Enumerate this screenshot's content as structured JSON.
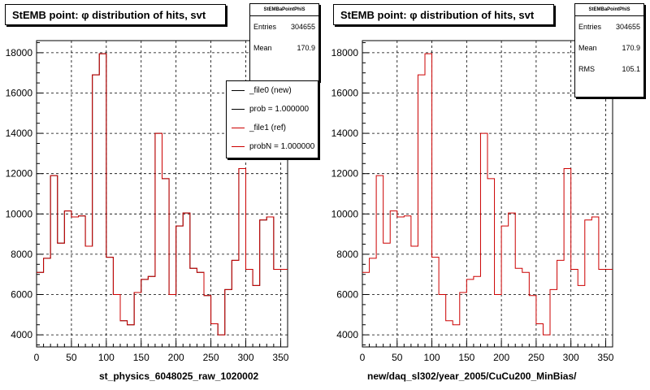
{
  "chart_data": [
    {
      "type": "histogram",
      "title": "StEMB point:  φ distribution of hits, svt",
      "xlabel": "st_physics_6048025_raw_1020002",
      "ylabel": "",
      "xlim": [
        0,
        360
      ],
      "ylim": [
        3400,
        18600
      ],
      "xticks": [
        0,
        50,
        100,
        150,
        200,
        250,
        300,
        350
      ],
      "yticks": [
        4000,
        6000,
        8000,
        10000,
        12000,
        14000,
        16000,
        18000
      ],
      "grid": true,
      "bin_edges": [
        0,
        10,
        20,
        30,
        40,
        50,
        60,
        70,
        80,
        90,
        100,
        110,
        120,
        130,
        140,
        150,
        160,
        170,
        180,
        190,
        200,
        210,
        220,
        230,
        240,
        250,
        260,
        270,
        280,
        290,
        300,
        310,
        320,
        330,
        340,
        350,
        360
      ],
      "series": [
        {
          "name": "_file0 (new)",
          "color": "#000000",
          "values": [
            7100,
            7800,
            11900,
            8550,
            10150,
            9850,
            9900,
            8400,
            16900,
            17950,
            7850,
            6000,
            4700,
            4500,
            6100,
            6750,
            6900,
            14000,
            11750,
            6000,
            9400,
            10050,
            7300,
            7100,
            5950,
            4550,
            4000,
            6250,
            7700,
            12250,
            7250,
            6450,
            9700,
            9850,
            7250,
            7250
          ]
        },
        {
          "name": "_file1 (ref)",
          "color": "#cc0000",
          "values": [
            7100,
            7800,
            11900,
            8550,
            10150,
            9850,
            9900,
            8400,
            16900,
            17950,
            7850,
            6000,
            4700,
            4500,
            6100,
            6750,
            6900,
            14000,
            11750,
            6000,
            9400,
            10050,
            7300,
            7100,
            5950,
            4550,
            4000,
            6250,
            7700,
            12250,
            7250,
            6450,
            9700,
            9850,
            7250,
            7250
          ]
        }
      ],
      "stats": {
        "name": "StEMBaPointPhiS",
        "entries": "304655",
        "mean": "170.9"
      },
      "legend": {
        "entries": [
          "_file0 (new)",
          "prob = 1.000000",
          "_file1 (ref)",
          "probN = 1.000000"
        ],
        "placement": "top-right"
      }
    },
    {
      "type": "histogram",
      "title": "StEMB point:  φ distribution of hits, svt",
      "xlabel": "new/daq_sl302/year_2005/CuCu200_MinBias/",
      "ylabel": "",
      "xlim": [
        0,
        360
      ],
      "ylim": [
        3400,
        18600
      ],
      "xticks": [
        0,
        50,
        100,
        150,
        200,
        250,
        300,
        350
      ],
      "yticks": [
        4000,
        6000,
        8000,
        10000,
        12000,
        14000,
        16000,
        18000
      ],
      "grid": true,
      "bin_edges": [
        0,
        10,
        20,
        30,
        40,
        50,
        60,
        70,
        80,
        90,
        100,
        110,
        120,
        130,
        140,
        150,
        160,
        170,
        180,
        190,
        200,
        210,
        220,
        230,
        240,
        250,
        260,
        270,
        280,
        290,
        300,
        310,
        320,
        330,
        340,
        350,
        360
      ],
      "series": [
        {
          "name": "",
          "color": "#cc0000",
          "values": [
            7100,
            7800,
            11900,
            8550,
            10150,
            9850,
            9900,
            8400,
            16900,
            17950,
            7850,
            6000,
            4700,
            4500,
            6100,
            6750,
            6900,
            14000,
            11750,
            6000,
            9400,
            10050,
            7300,
            7100,
            5950,
            4550,
            4000,
            6250,
            7700,
            12250,
            7250,
            6450,
            9700,
            9850,
            7250,
            7250
          ]
        }
      ],
      "stats": {
        "name": "StEMBaPointPhiS",
        "entries": "304655",
        "mean": "170.9",
        "rms": "105.1"
      }
    }
  ],
  "labels": {
    "entries": "Entries",
    "mean": "Mean",
    "rms": "RMS"
  }
}
